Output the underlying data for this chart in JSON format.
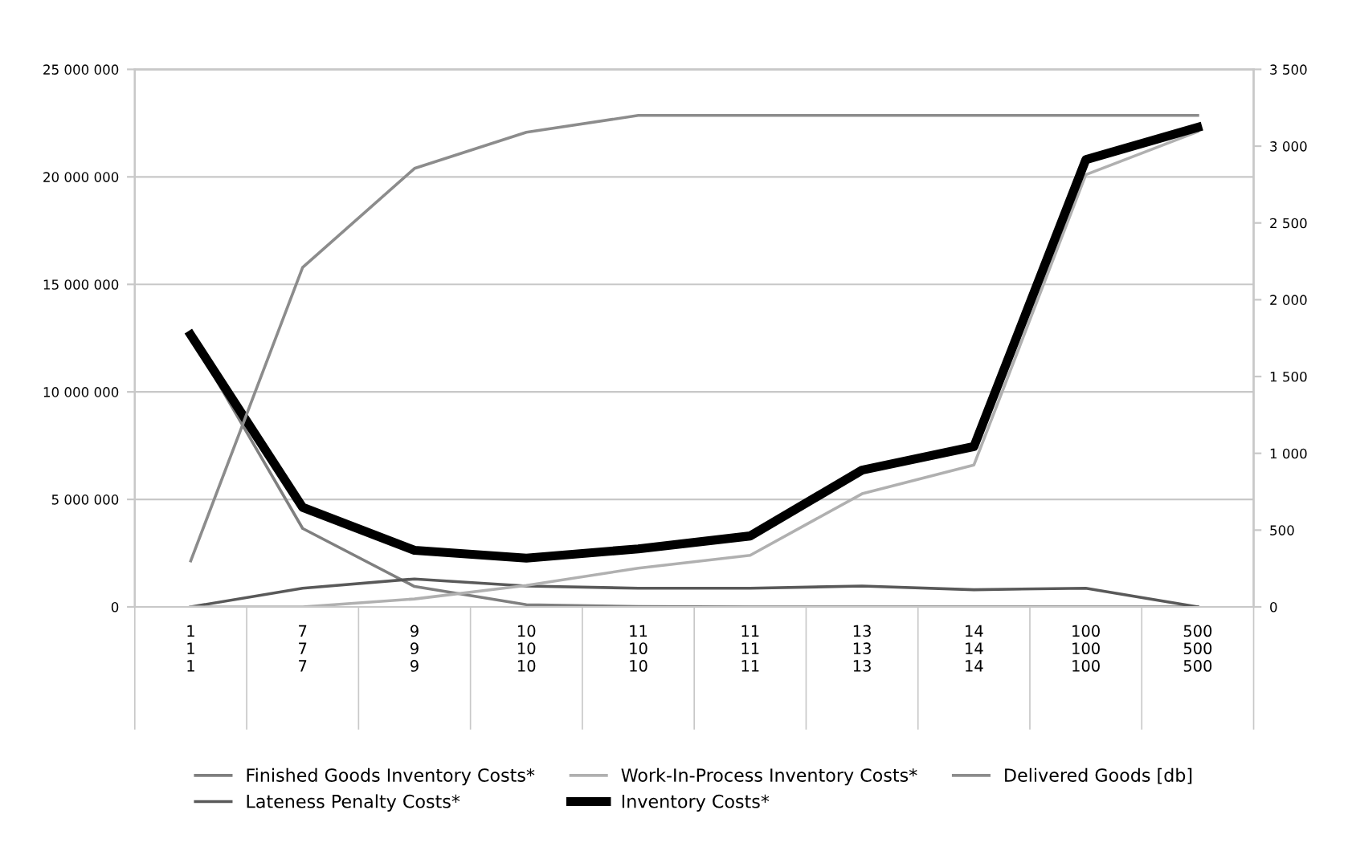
{
  "chart_data": {
    "type": "line",
    "categories": [
      "1\n1\n1",
      "7\n7\n7",
      "9\n9\n9",
      "10\n10\n10",
      "11\n10\n10",
      "11\n11\n11",
      "13\n13\n13",
      "14\n14\n14",
      "100\n100\n100",
      "500\n500\n500"
    ],
    "series": [
      {
        "name": "Finished Goods Inventory Costs*",
        "color": "#7f7f7f",
        "values": [
          12600000,
          3650000,
          950000,
          100000,
          20000,
          0,
          0,
          0,
          0,
          0
        ]
      },
      {
        "name": "Lateness Penalty Costs*",
        "color": "#595959",
        "values": [
          0,
          870000,
          1300000,
          970000,
          870000,
          870000,
          970000,
          800000,
          870000,
          0
        ]
      },
      {
        "name": "Work-In-Process Inventory Costs*",
        "color": "#b0b0b0",
        "values": [
          0,
          0,
          370000,
          1000000,
          1800000,
          2400000,
          5260000,
          6600000,
          20100000,
          22100000
        ]
      },
      {
        "name": "Inventory Costs*",
        "color": "#000000",
        "values": [
          12650000,
          4630000,
          2630000,
          2270000,
          2700000,
          3300000,
          6360000,
          7460000,
          20800000,
          22300000
        ]
      },
      {
        "name": "Delivered Goods [db]",
        "color": "#8c8c8c",
        "axis": "y2",
        "values": [
          300,
          2210,
          2855,
          3090,
          3200,
          3200,
          3200,
          3200,
          3200,
          3200
        ]
      }
    ],
    "ylim": [
      0,
      25000000
    ],
    "yticks": [
      {
        "value": 0,
        "label": "0"
      },
      {
        "value": 5000000,
        "label": "5 000 000"
      },
      {
        "value": 10000000,
        "label": "10 000 000"
      },
      {
        "value": 15000000,
        "label": "15 000 000"
      },
      {
        "value": 20000000,
        "label": "20 000 000"
      },
      {
        "value": 25000000,
        "label": "25 000 000"
      }
    ],
    "y2lim": [
      0,
      3500
    ],
    "y2ticks": [
      0,
      500,
      {
        "value": 1000,
        "label": "1 000"
      },
      {
        "value": 1500,
        "label": "1 500"
      },
      {
        "value": 2000,
        "label": "2 000"
      },
      {
        "value": 2500,
        "label": "2 500"
      },
      {
        "value": 3000,
        "label": "3 000"
      },
      {
        "value": 3500,
        "label": "3 500"
      }
    ],
    "grid": "y",
    "legend": "bottom",
    "marker": "none",
    "line_style": "solid"
  }
}
